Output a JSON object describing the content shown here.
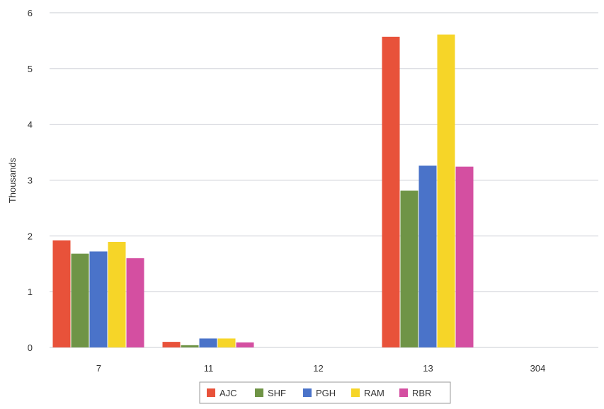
{
  "chart_data": {
    "type": "bar",
    "categories": [
      "7",
      "11",
      "12",
      "13",
      "304"
    ],
    "series": [
      {
        "name": "AJC",
        "color": "#e8523a",
        "values": [
          1.92,
          0.1,
          0.0,
          5.57,
          0.0
        ]
      },
      {
        "name": "SHF",
        "color": "#6f9446",
        "values": [
          1.68,
          0.04,
          0.0,
          2.81,
          0.0
        ]
      },
      {
        "name": "PGH",
        "color": "#4a73c9",
        "values": [
          1.72,
          0.16,
          0.0,
          3.26,
          0.0
        ]
      },
      {
        "name": "RAM",
        "color": "#f6d528",
        "values": [
          1.89,
          0.16,
          0.0,
          5.61,
          0.0
        ]
      },
      {
        "name": "RBR",
        "color": "#d44fa1",
        "values": [
          1.6,
          0.09,
          0.0,
          3.24,
          0.0
        ]
      }
    ],
    "ylabel": "Thousands",
    "xlabel": "",
    "ylim": [
      0,
      6
    ],
    "yticks": [
      "0",
      "1",
      "2",
      "3",
      "4",
      "5",
      "6"
    ],
    "grid": true,
    "legend_position": "bottom"
  }
}
